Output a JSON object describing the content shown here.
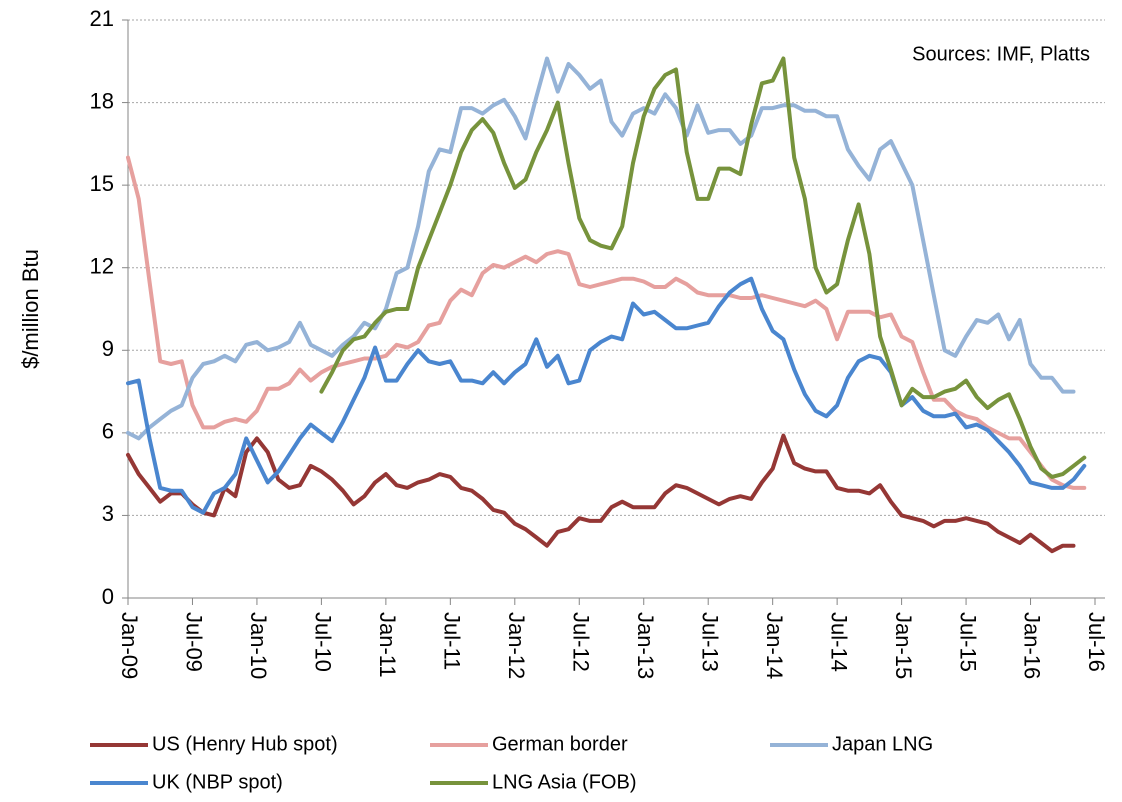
{
  "chart_data": {
    "type": "line",
    "y_label": "$/million Btu",
    "annotation": "Sources: IMF, Platts",
    "categories": [
      "Jan-09",
      null,
      null,
      null,
      null,
      null,
      "Jul-09",
      null,
      null,
      null,
      null,
      null,
      "Jan-10",
      null,
      null,
      null,
      null,
      null,
      "Jul-10",
      null,
      null,
      null,
      null,
      null,
      "Jan-11",
      null,
      null,
      null,
      null,
      null,
      "Jul-11",
      null,
      null,
      null,
      null,
      null,
      "Jan-12",
      null,
      null,
      null,
      null,
      null,
      "Jul-12",
      null,
      null,
      null,
      null,
      null,
      "Jan-13",
      null,
      null,
      null,
      null,
      null,
      "Jul-13",
      null,
      null,
      null,
      null,
      null,
      "Jan-14",
      null,
      null,
      null,
      null,
      null,
      "Jul-14",
      null,
      null,
      null,
      null,
      null,
      "Jan-15",
      null,
      null,
      null,
      null,
      null,
      "Jul-15",
      null,
      null,
      null,
      null,
      null,
      "Jan-16",
      null,
      null,
      null,
      null,
      null,
      "Jul-16"
    ],
    "ylim": [
      0,
      21
    ],
    "yticks": [
      0,
      3,
      6,
      9,
      12,
      15,
      18,
      21
    ],
    "grid": true,
    "series": [
      {
        "name": "US (Henry Hub spot)",
        "color": "#953735",
        "values": [
          5.2,
          4.5,
          4.0,
          3.5,
          3.8,
          3.8,
          3.4,
          3.1,
          3.0,
          4.0,
          3.7,
          5.3,
          5.8,
          5.3,
          4.3,
          4.0,
          4.1,
          4.8,
          4.6,
          4.3,
          3.9,
          3.4,
          3.7,
          4.2,
          4.5,
          4.1,
          4.0,
          4.2,
          4.3,
          4.5,
          4.4,
          4.0,
          3.9,
          3.6,
          3.2,
          3.1,
          2.7,
          2.5,
          2.2,
          1.9,
          2.4,
          2.5,
          2.9,
          2.8,
          2.8,
          3.3,
          3.5,
          3.3,
          3.3,
          3.3,
          3.8,
          4.1,
          4.0,
          3.8,
          3.6,
          3.4,
          3.6,
          3.7,
          3.6,
          4.2,
          4.7,
          5.9,
          4.9,
          4.7,
          4.6,
          4.6,
          4.0,
          3.9,
          3.9,
          3.8,
          4.1,
          3.5,
          3.0,
          2.9,
          2.8,
          2.6,
          2.8,
          2.8,
          2.9,
          2.8,
          2.7,
          2.4,
          2.2,
          2.0,
          2.3,
          2.0,
          1.7,
          1.9,
          1.9,
          null,
          null
        ]
      },
      {
        "name": "German border",
        "color": "#e6a09e",
        "values": [
          16.0,
          14.5,
          11.5,
          8.6,
          8.5,
          8.6,
          7.0,
          6.2,
          6.2,
          6.4,
          6.5,
          6.4,
          6.8,
          7.6,
          7.6,
          7.8,
          8.3,
          7.9,
          8.2,
          8.4,
          8.5,
          8.6,
          8.7,
          8.7,
          8.8,
          9.2,
          9.1,
          9.3,
          9.9,
          10.0,
          10.8,
          11.2,
          11.0,
          11.8,
          12.1,
          12.0,
          12.2,
          12.4,
          12.2,
          12.5,
          12.6,
          12.5,
          11.4,
          11.3,
          11.4,
          11.5,
          11.6,
          11.6,
          11.5,
          11.3,
          11.3,
          11.6,
          11.4,
          11.1,
          11.0,
          11.0,
          11.0,
          10.9,
          10.9,
          11.0,
          10.9,
          10.8,
          10.7,
          10.6,
          10.8,
          10.5,
          9.4,
          10.4,
          10.4,
          10.4,
          10.2,
          10.3,
          9.5,
          9.3,
          8.2,
          7.2,
          7.2,
          6.8,
          6.6,
          6.5,
          6.2,
          6.0,
          5.8,
          5.8,
          5.3,
          4.8,
          4.3,
          4.1,
          4.0,
          4.0,
          null
        ]
      },
      {
        "name": "Japan LNG",
        "color": "#95b3d7",
        "values": [
          6.0,
          5.8,
          6.2,
          6.5,
          6.8,
          7.0,
          8.0,
          8.5,
          8.6,
          8.8,
          8.6,
          9.2,
          9.3,
          9.0,
          9.1,
          9.3,
          10.0,
          9.2,
          9.0,
          8.8,
          9.2,
          9.5,
          10.0,
          9.8,
          10.5,
          11.8,
          12.0,
          13.5,
          15.5,
          16.3,
          16.2,
          17.8,
          17.8,
          17.6,
          17.9,
          18.1,
          17.5,
          16.7,
          18.2,
          19.6,
          18.4,
          19.4,
          19.0,
          18.5,
          18.8,
          17.3,
          16.8,
          17.6,
          17.8,
          17.6,
          18.3,
          17.8,
          16.8,
          17.9,
          16.9,
          17.0,
          17.0,
          16.5,
          16.8,
          17.8,
          17.8,
          17.9,
          17.9,
          17.7,
          17.7,
          17.5,
          17.5,
          16.3,
          15.7,
          15.2,
          16.3,
          16.6,
          15.8,
          15.0,
          13.0,
          11.0,
          9.0,
          8.8,
          9.5,
          10.1,
          10.0,
          10.3,
          9.4,
          10.1,
          8.5,
          8.0,
          8.0,
          7.5,
          7.5,
          null,
          null
        ]
      },
      {
        "name": "UK (NBP spot)",
        "color": "#4a86cf",
        "values": [
          7.8,
          7.9,
          5.8,
          4.0,
          3.9,
          3.9,
          3.3,
          3.1,
          3.8,
          4.0,
          4.5,
          5.8,
          5.0,
          4.2,
          4.6,
          5.2,
          5.8,
          6.3,
          6.0,
          5.7,
          6.4,
          7.2,
          8.0,
          9.1,
          7.9,
          7.9,
          8.5,
          9.0,
          8.6,
          8.5,
          8.6,
          7.9,
          7.9,
          7.8,
          8.2,
          7.8,
          8.2,
          8.5,
          9.4,
          8.4,
          8.8,
          7.8,
          7.9,
          9.0,
          9.3,
          9.5,
          9.4,
          10.7,
          10.3,
          10.4,
          10.1,
          9.8,
          9.8,
          9.9,
          10.0,
          10.6,
          11.1,
          11.4,
          11.6,
          10.5,
          9.7,
          9.4,
          8.3,
          7.4,
          6.8,
          6.6,
          7.0,
          8.0,
          8.6,
          8.8,
          8.7,
          8.2,
          7.0,
          7.3,
          6.8,
          6.6,
          6.6,
          6.7,
          6.2,
          6.3,
          6.1,
          5.7,
          5.3,
          4.8,
          4.2,
          4.1,
          4.0,
          4.0,
          4.3,
          4.8,
          null
        ]
      },
      {
        "name": "LNG Asia (FOB)",
        "color": "#77933c",
        "values": [
          null,
          null,
          null,
          null,
          null,
          null,
          null,
          null,
          null,
          null,
          null,
          null,
          null,
          null,
          null,
          null,
          null,
          null,
          7.5,
          8.2,
          9.0,
          9.4,
          9.5,
          10.0,
          10.4,
          10.5,
          10.5,
          12.0,
          13.0,
          14.0,
          15.0,
          16.2,
          17.0,
          17.4,
          16.9,
          15.8,
          14.9,
          15.2,
          16.2,
          17.0,
          18.0,
          15.8,
          13.8,
          13.0,
          12.8,
          12.7,
          13.5,
          15.8,
          17.5,
          18.5,
          19.0,
          19.2,
          16.2,
          14.5,
          14.5,
          15.6,
          15.6,
          15.4,
          17.2,
          18.7,
          18.8,
          19.6,
          16.0,
          14.5,
          12.0,
          11.1,
          11.4,
          13.0,
          14.3,
          12.5,
          9.5,
          8.3,
          7.0,
          7.6,
          7.3,
          7.3,
          7.5,
          7.6,
          7.9,
          7.3,
          6.9,
          7.2,
          7.4,
          6.5,
          5.5,
          4.7,
          4.4,
          4.5,
          4.8,
          5.1,
          null
        ]
      }
    ]
  }
}
